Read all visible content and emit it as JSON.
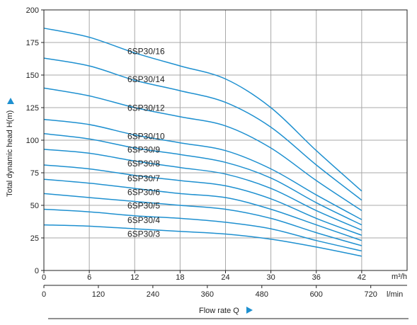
{
  "chart_data": {
    "type": "line",
    "ylabel": "Total dynamic head H(m)",
    "xlabel": "Flow rate Q",
    "x_unit_primary": "m³/h",
    "x_unit_secondary": "l/min",
    "xlim": [
      0,
      48
    ],
    "ylim": [
      0,
      200
    ],
    "x_ticks_primary": [
      "0",
      "6",
      "12",
      "18",
      "24",
      "30",
      "36",
      "42"
    ],
    "x_ticks_secondary": [
      "0",
      "120",
      "240",
      "360",
      "480",
      "600",
      "720"
    ],
    "y_ticks": [
      "0",
      "25",
      "50",
      "75",
      "100",
      "125",
      "150",
      "175",
      "200"
    ],
    "grid": true,
    "line_color": "#1e90d0",
    "x": [
      0,
      6,
      12,
      18,
      24,
      30,
      36,
      42
    ],
    "series": [
      {
        "name": "6SP30/16",
        "values": [
          186,
          179,
          167,
          157,
          147,
          125,
          92,
          61
        ]
      },
      {
        "name": "6SP30/14",
        "values": [
          163,
          157,
          146,
          138,
          129,
          110,
          81,
          54
        ]
      },
      {
        "name": "6SP30/12",
        "values": [
          140,
          134,
          125,
          118,
          111,
          94,
          69,
          46
        ]
      },
      {
        "name": "6SP30/10",
        "values": [
          116,
          112,
          104,
          98,
          92,
          78,
          58,
          39
        ]
      },
      {
        "name": "6SP30/9",
        "values": [
          105,
          101,
          94,
          89,
          83,
          71,
          52,
          35
        ]
      },
      {
        "name": "6SP30/8",
        "values": [
          93,
          90,
          84,
          79,
          74,
          63,
          46,
          31
        ]
      },
      {
        "name": "6SP30/7",
        "values": [
          81,
          78,
          73,
          69,
          65,
          55,
          40,
          27
        ]
      },
      {
        "name": "6SP30/6",
        "values": [
          70,
          67,
          63,
          59,
          56,
          47,
          35,
          23
        ]
      },
      {
        "name": "6SP30/5",
        "values": [
          59,
          56,
          53,
          50,
          47,
          40,
          29,
          19
        ]
      },
      {
        "name": "6SP30/4",
        "values": [
          47,
          45,
          42,
          40,
          37,
          32,
          23,
          15
        ]
      },
      {
        "name": "6SP30/3",
        "values": [
          35,
          34,
          32,
          30,
          28,
          24,
          18,
          11
        ]
      }
    ]
  }
}
